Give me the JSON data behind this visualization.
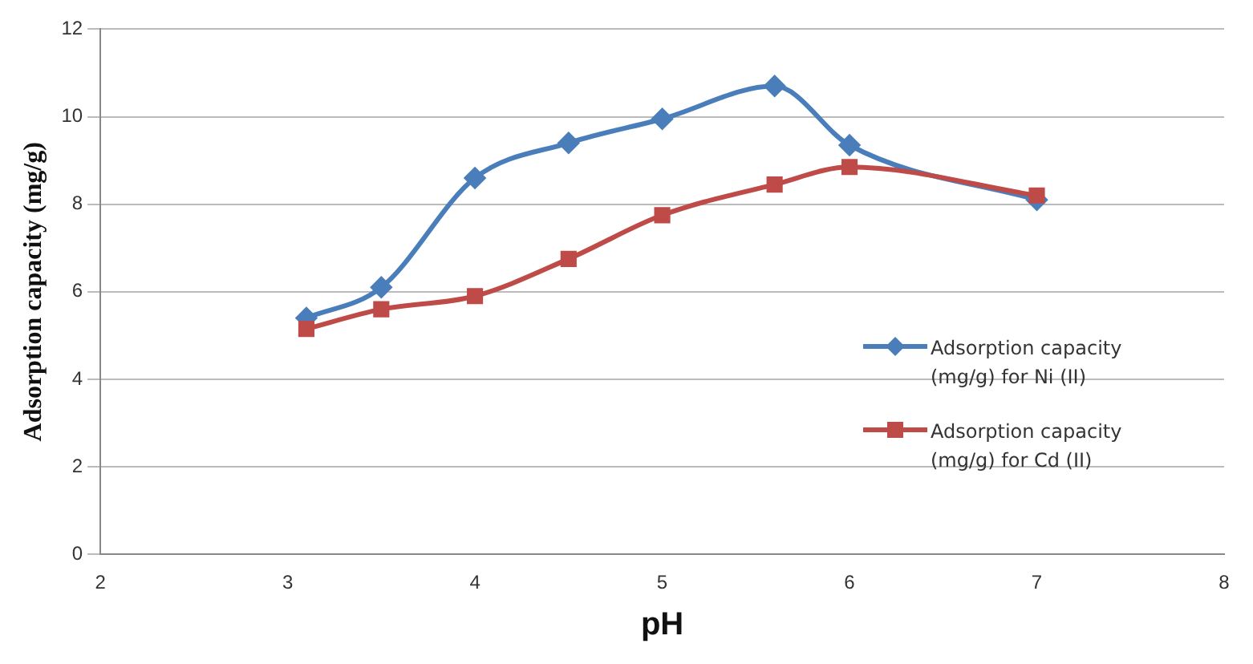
{
  "chart_data": {
    "type": "line",
    "xlabel": "pH",
    "ylabel": "Adsorption capacity (mg/g)",
    "xlim": [
      2,
      8
    ],
    "xticks": [
      2,
      3,
      4,
      5,
      6,
      7,
      8
    ],
    "ylim": [
      0,
      12
    ],
    "yticks": [
      0,
      2,
      4,
      6,
      8,
      10,
      12
    ],
    "grid": "y",
    "legend": "right",
    "line_style": "solid",
    "x": [
      3.1,
      3.5,
      4,
      4.5,
      5,
      5.6,
      6,
      7
    ],
    "series": [
      {
        "name": "Adsorption capacity (mg/g) for Ni (II)",
        "color": "#4a7ebb",
        "marker": "diamond",
        "values": [
          5.4,
          6.1,
          8.6,
          9.4,
          9.95,
          10.7,
          9.35,
          8.1
        ]
      },
      {
        "name": "Adsorption capacity (mg/g) for Cd (II)",
        "color": "#be4b48",
        "marker": "square",
        "values": [
          5.15,
          5.6,
          5.9,
          6.75,
          7.75,
          8.45,
          8.85,
          8.2
        ]
      }
    ]
  }
}
